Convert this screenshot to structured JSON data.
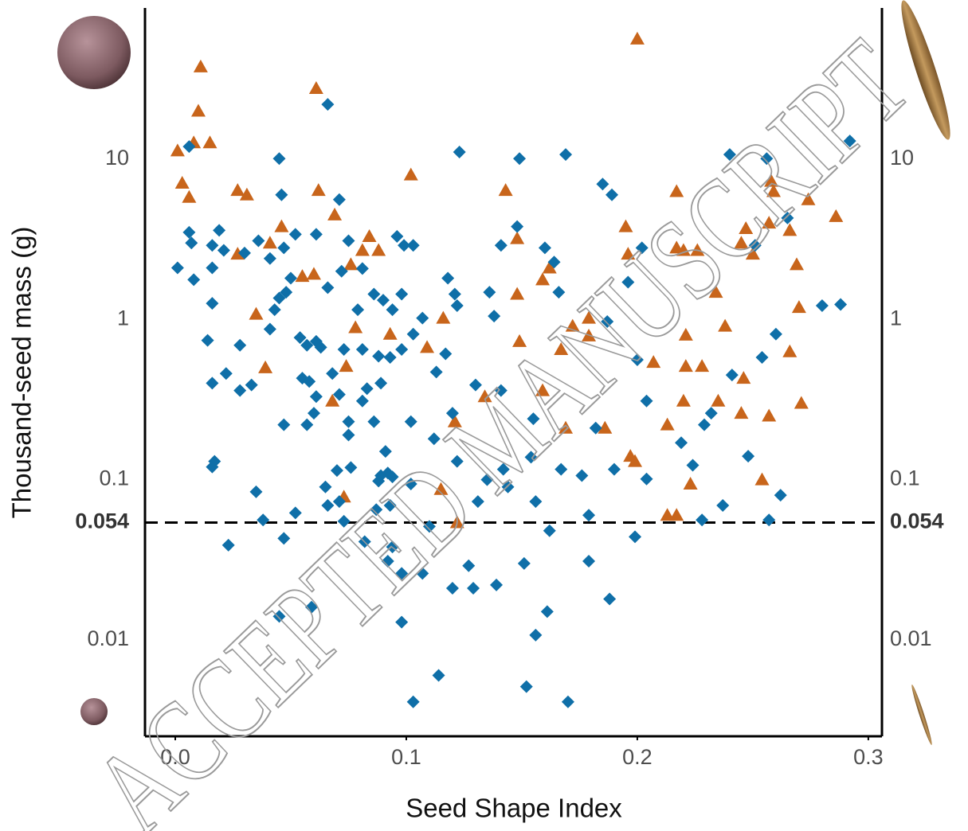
{
  "chart_data": {
    "type": "scatter",
    "xlabel": "Seed Shape Index",
    "ylabel": "Thousand-seed mass (g)",
    "watermark": "ACCEPTED MANUSCRIPT",
    "xlim": [
      -0.0131,
      0.3059
    ],
    "ylim": [
      0.0025,
      88
    ],
    "ylog": true,
    "xticks": [
      {
        "value": 0,
        "label": "0.0"
      },
      0.1,
      0.2,
      0.3
    ],
    "yticks": [
      0.01,
      0.1,
      1,
      10
    ],
    "reference_line": 0.054,
    "series": [
      {
        "color": "#c8651b",
        "marker": "triangle",
        "x": [
          0.001,
          0.011,
          0.01,
          0.008,
          0.015,
          0.003,
          0.006,
          0.027,
          0.031,
          0.027,
          0.061,
          0.062,
          0.069,
          0.046,
          0.041,
          0.035,
          0.039,
          0.06,
          0.055,
          0.076,
          0.084,
          0.081,
          0.088,
          0.078,
          0.074,
          0.093,
          0.102,
          0.109,
          0.116,
          0.121,
          0.115,
          0.122,
          0.073,
          0.068,
          0.143,
          0.148,
          0.148,
          0.149,
          0.159,
          0.162,
          0.159,
          0.134,
          0.167,
          0.169,
          0.172,
          0.179,
          0.179,
          0.186,
          0.195,
          0.196,
          0.197,
          0.199,
          0.2,
          0.207,
          0.213,
          0.217,
          0.217,
          0.22,
          0.221,
          0.221,
          0.213,
          0.217,
          0.223,
          0.226,
          0.228,
          0.22,
          0.234,
          0.238,
          0.235,
          0.246,
          0.245,
          0.247,
          0.245,
          0.25,
          0.257,
          0.258,
          0.259,
          0.257,
          0.254,
          0.266,
          0.269,
          0.27,
          0.266,
          0.271,
          0.274,
          0.286
        ],
        "values": [
          11.3,
          37.8,
          20.0,
          12.7,
          12.7,
          7.1,
          5.8,
          6.4,
          6.0,
          2.56,
          27.7,
          6.4,
          4.5,
          3.8,
          3.0,
          1.08,
          0.5,
          1.92,
          1.86,
          2.2,
          3.3,
          2.7,
          2.7,
          0.89,
          0.51,
          0.81,
          8.0,
          0.67,
          1.02,
          0.23,
          0.087,
          0.054,
          0.078,
          0.31,
          6.4,
          3.2,
          1.44,
          0.73,
          1.77,
          2.1,
          0.36,
          0.33,
          0.65,
          0.21,
          0.91,
          1.02,
          0.79,
          0.21,
          3.8,
          2.56,
          0.14,
          0.13,
          56.4,
          0.54,
          0.22,
          6.3,
          2.8,
          2.7,
          0.8,
          0.51,
          0.06,
          0.06,
          0.094,
          2.7,
          0.51,
          0.31,
          1.48,
          0.91,
          0.31,
          0.43,
          0.26,
          3.7,
          3.0,
          2.56,
          4.0,
          7.3,
          6.3,
          0.25,
          0.1,
          3.6,
          2.2,
          1.19,
          0.63,
          0.3,
          5.6,
          4.4
        ]
      },
      {
        "color": "#0f6fa8",
        "marker": "diamond",
        "x": [
          0.006,
          0.001,
          0.006,
          0.007,
          0.008,
          0.016,
          0.019,
          0.016,
          0.016,
          0.014,
          0.016,
          0.022,
          0.028,
          0.028,
          0.033,
          0.016,
          0.017,
          0.023,
          0.021,
          0.03,
          0.036,
          0.041,
          0.045,
          0.046,
          0.045,
          0.043,
          0.041,
          0.048,
          0.05,
          0.052,
          0.047,
          0.054,
          0.057,
          0.061,
          0.063,
          0.055,
          0.058,
          0.061,
          0.057,
          0.06,
          0.047,
          0.035,
          0.038,
          0.052,
          0.047,
          0.045,
          0.059,
          0.066,
          0.071,
          0.061,
          0.072,
          0.066,
          0.068,
          0.071,
          0.075,
          0.075,
          0.065,
          0.066,
          0.071,
          0.073,
          0.07,
          0.076,
          0.082,
          0.075,
          0.081,
          0.086,
          0.079,
          0.073,
          0.081,
          0.088,
          0.09,
          0.083,
          0.089,
          0.081,
          0.086,
          0.091,
          0.089,
          0.092,
          0.088,
          0.094,
          0.093,
          0.087,
          0.094,
          0.092,
          0.098,
          0.098,
          0.096,
          0.099,
          0.103,
          0.098,
          0.094,
          0.093,
          0.098,
          0.103,
          0.107,
          0.102,
          0.102,
          0.103,
          0.11,
          0.107,
          0.113,
          0.112,
          0.114,
          0.118,
          0.121,
          0.122,
          0.117,
          0.12,
          0.122,
          0.123,
          0.12,
          0.127,
          0.129,
          0.13,
          0.131,
          0.136,
          0.138,
          0.141,
          0.139,
          0.135,
          0.142,
          0.144,
          0.141,
          0.149,
          0.148,
          0.151,
          0.152,
          0.156,
          0.161,
          0.155,
          0.154,
          0.156,
          0.162,
          0.16,
          0.164,
          0.166,
          0.169,
          0.167,
          0.17,
          0.176,
          0.179,
          0.179,
          0.182,
          0.185,
          0.189,
          0.188,
          0.187,
          0.19,
          0.196,
          0.202,
          0.2,
          0.199,
          0.204,
          0.204,
          0.219,
          0.224,
          0.228,
          0.229,
          0.232,
          0.237,
          0.24,
          0.241,
          0.248,
          0.256,
          0.254,
          0.251,
          0.26,
          0.262,
          0.257,
          0.265,
          0.28,
          0.288,
          0.292
        ],
        "values": [
          12.0,
          2.1,
          3.5,
          3.0,
          1.77,
          2.9,
          3.6,
          2.1,
          1.26,
          0.74,
          0.4,
          0.46,
          0.36,
          0.69,
          0.39,
          0.12,
          0.13,
          0.039,
          2.7,
          2.6,
          3.1,
          2.4,
          10.1,
          6.0,
          1.36,
          1.15,
          0.87,
          1.48,
          1.81,
          3.4,
          2.8,
          0.77,
          0.69,
          0.73,
          0.67,
          0.43,
          0.41,
          0.33,
          0.22,
          0.26,
          0.22,
          0.084,
          0.056,
          0.062,
          0.043,
          0.014,
          0.016,
          22.0,
          5.6,
          3.4,
          2.0,
          1.58,
          0.46,
          0.34,
          0.23,
          0.19,
          0.09,
          0.069,
          0.073,
          0.055,
          0.114,
          0.119,
          0.041,
          3.1,
          2.08,
          1.44,
          1.15,
          0.65,
          0.65,
          0.59,
          1.32,
          0.37,
          0.4,
          0.31,
          0.23,
          0.15,
          0.106,
          0.11,
          0.098,
          0.104,
          0.069,
          0.065,
          0.038,
          0.031,
          0.026,
          0.0129,
          3.3,
          2.9,
          2.9,
          1.44,
          1.15,
          0.58,
          0.65,
          0.81,
          1.02,
          0.23,
          0.094,
          0.0041,
          0.051,
          0.026,
          0.47,
          0.18,
          0.006,
          1.81,
          1.44,
          1.22,
          0.61,
          0.26,
          0.13,
          11.1,
          0.021,
          0.029,
          0.021,
          0.39,
          0.073,
          1.48,
          1.05,
          0.36,
          0.022,
          0.1,
          0.116,
          0.09,
          2.9,
          10.1,
          3.8,
          0.03,
          0.0051,
          0.0107,
          0.015,
          0.24,
          0.138,
          0.073,
          0.048,
          2.8,
          2.28,
          1.48,
          10.7,
          0.116,
          0.0041,
          0.106,
          0.06,
          0.031,
          0.21,
          7.0,
          6.0,
          0.018,
          0.97,
          0.116,
          1.71,
          2.8,
          0.56,
          0.044,
          0.101,
          0.31,
          0.17,
          0.123,
          0.056,
          0.22,
          0.26,
          0.069,
          10.7,
          0.45,
          0.14,
          10.1,
          0.58,
          2.9,
          0.81,
          0.08,
          0.056,
          4.3,
          1.22,
          1.24,
          13.0
        ]
      }
    ]
  }
}
